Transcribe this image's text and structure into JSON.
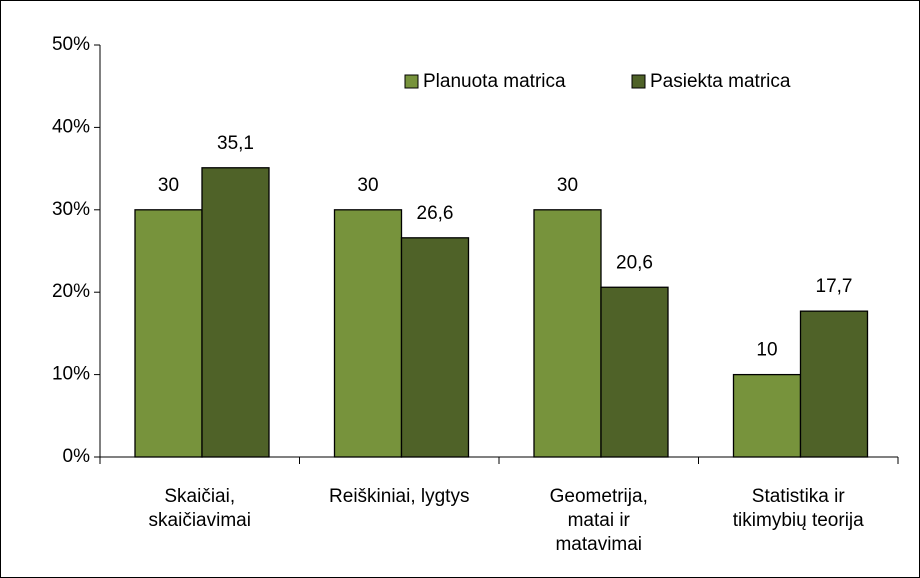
{
  "chart_data": {
    "type": "bar",
    "categories": [
      "Skaičiai,\nskaičiavimai",
      "Reiškiniai, lygtys",
      "Geometrija,\nmatai ir\nmatavimai",
      "Statistika ir\ntikimybių teorija"
    ],
    "series": [
      {
        "name": "Planuota matrica",
        "color": "#77933c",
        "values": [
          30,
          30,
          30,
          10
        ],
        "value_labels": [
          "30",
          "30",
          "30",
          "10"
        ]
      },
      {
        "name": "Pasiekta matrica",
        "color": "#4f6228",
        "values": [
          35.1,
          26.6,
          20.6,
          17.7
        ],
        "value_labels": [
          "35,1",
          "26,6",
          "20,6",
          "17,7"
        ]
      }
    ],
    "ylim": [
      0,
      50
    ],
    "yticks": [
      {
        "value": 0,
        "label": "0%"
      },
      {
        "value": 10,
        "label": "10%"
      },
      {
        "value": 20,
        "label": "20%"
      },
      {
        "value": 30,
        "label": "30%"
      },
      {
        "value": 40,
        "label": "40%"
      },
      {
        "value": 50,
        "label": "50%"
      }
    ],
    "legend": "top-right"
  }
}
